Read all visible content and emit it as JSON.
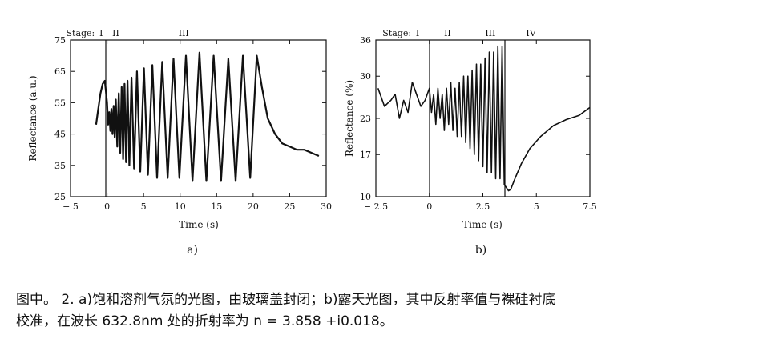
{
  "chart_data": [
    {
      "type": "line",
      "panel_label": "a)",
      "xlabel": "Time (s)",
      "ylabel": "Reflectance (a.u.)",
      "xlim": [
        -5,
        30
      ],
      "ylim": [
        25,
        75
      ],
      "xticks": [
        -5,
        0,
        5,
        10,
        15,
        20,
        25,
        30
      ],
      "xtick_labels": [
        "− 5",
        "0",
        "5",
        "10",
        "15",
        "20",
        "25",
        "30"
      ],
      "yticks": [
        25,
        35,
        45,
        55,
        65,
        75
      ],
      "ytick_labels": [
        "25",
        "35",
        "45",
        "55",
        "65",
        "75"
      ],
      "stage_prefix": "Stage:",
      "stages": [
        {
          "label": "I",
          "x": -0.8
        },
        {
          "label": "II",
          "x": 1.2
        },
        {
          "label": "III",
          "x": 10.5
        }
      ],
      "divider_x": 0,
      "series": [
        {
          "name": "reflectance",
          "x": [
            -1.5,
            -1.2,
            -0.9,
            -0.6,
            -0.3,
            0,
            0.15,
            0.3,
            0.45,
            0.6,
            0.75,
            0.9,
            1.05,
            1.2,
            1.4,
            1.6,
            1.8,
            2.0,
            2.2,
            2.4,
            2.6,
            2.8,
            3.05,
            3.35,
            3.7,
            4.1,
            4.55,
            5.05,
            5.6,
            6.2,
            6.85,
            7.55,
            8.3,
            9.1,
            9.9,
            10.8,
            11.7,
            12.65,
            13.6,
            14.6,
            15.6,
            16.6,
            17.6,
            18.6,
            19.6,
            20.5,
            21.2,
            22,
            23,
            24,
            25,
            26,
            27,
            28,
            29
          ],
          "values": [
            48,
            53,
            58,
            61,
            62,
            55,
            48,
            52,
            46,
            53,
            45,
            54,
            44,
            56,
            41,
            58,
            39,
            60,
            37,
            61,
            36,
            62,
            35,
            63,
            34,
            65,
            33,
            66,
            32,
            67,
            31,
            68,
            31,
            69,
            31,
            70,
            30,
            71,
            30,
            70,
            30,
            69,
            30,
            70,
            31,
            70,
            60,
            50,
            45,
            42,
            41,
            40,
            40,
            39,
            38
          ]
        }
      ]
    },
    {
      "type": "line",
      "panel_label": "b)",
      "xlabel": "Time (s)",
      "ylabel": "Reflectance (%)",
      "xlim": [
        -2.5,
        7.5
      ],
      "ylim": [
        10,
        36
      ],
      "xticks": [
        -2.5,
        0,
        2.5,
        5,
        7.5
      ],
      "xtick_labels": [
        "− 2.5",
        "0",
        "2.5",
        "5",
        "7.5"
      ],
      "yticks": [
        10,
        17,
        23,
        30,
        36
      ],
      "ytick_labels": [
        "10",
        "17",
        "23",
        "30",
        "36"
      ],
      "stage_prefix": "Stage:",
      "stages": [
        {
          "label": "I",
          "x": -0.55
        },
        {
          "label": "II",
          "x": 0.85
        },
        {
          "label": "III",
          "x": 2.85
        },
        {
          "label": "IV",
          "x": 4.75
        }
      ],
      "divider_x": 0,
      "divider2_x": 3.55,
      "series": [
        {
          "name": "reflectance",
          "x": [
            -2.4,
            -2.1,
            -1.8,
            -1.6,
            -1.4,
            -1.2,
            -1.0,
            -0.8,
            -0.6,
            -0.4,
            -0.2,
            0,
            0.1,
            0.2,
            0.3,
            0.4,
            0.5,
            0.6,
            0.7,
            0.8,
            0.9,
            1.0,
            1.1,
            1.2,
            1.3,
            1.4,
            1.5,
            1.6,
            1.7,
            1.8,
            1.9,
            2.0,
            2.1,
            2.2,
            2.3,
            2.4,
            2.5,
            2.6,
            2.7,
            2.8,
            2.9,
            3.0,
            3.1,
            3.2,
            3.3,
            3.4,
            3.5,
            3.6,
            3.7,
            3.8,
            4.0,
            4.3,
            4.7,
            5.2,
            5.8,
            6.4,
            7.0,
            7.5
          ],
          "values": [
            28,
            25,
            26,
            27,
            23,
            26,
            24,
            29,
            27,
            25,
            26,
            28,
            24,
            27,
            22,
            28,
            23,
            27,
            21,
            28,
            22,
            29,
            21,
            28,
            20,
            29,
            20,
            30,
            19,
            30,
            18,
            31,
            17,
            32,
            16,
            32,
            15,
            33,
            14,
            34,
            14,
            34,
            13,
            35,
            13,
            35,
            12,
            11.5,
            11,
            11.2,
            13,
            15.5,
            18,
            20,
            21.8,
            22.8,
            23.5,
            24.8
          ]
        }
      ]
    }
  ],
  "caption": {
    "line1": "图中。  2. a)饱和溶剂气氛的光图，由玻璃盖封闭；b)露天光图，其中反射率值与裸硅衬底",
    "line2": "校准，在波长 632.8nm 处的折射率为 n = 3.858 +i0.018。"
  }
}
